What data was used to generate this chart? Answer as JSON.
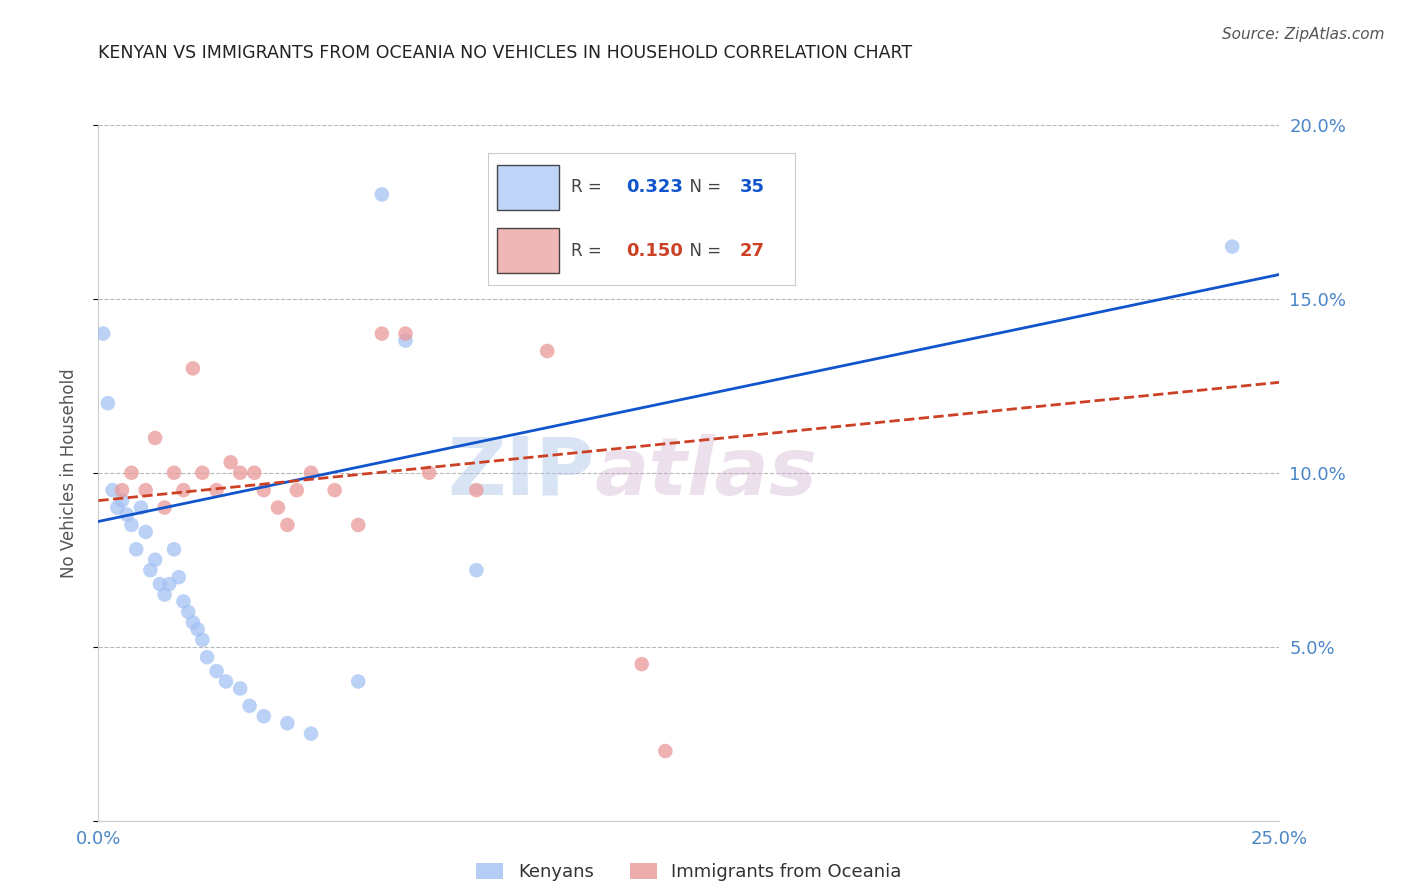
{
  "title": "KENYAN VS IMMIGRANTS FROM OCEANIA NO VEHICLES IN HOUSEHOLD CORRELATION CHART",
  "source": "Source: ZipAtlas.com",
  "ylabel": "No Vehicles in Household",
  "xlim": [
    0.0,
    0.25
  ],
  "ylim": [
    0.0,
    0.2
  ],
  "yticks": [
    0.0,
    0.05,
    0.1,
    0.15,
    0.2
  ],
  "ytick_labels": [
    "",
    "5.0%",
    "10.0%",
    "15.0%",
    "20.0%"
  ],
  "xticks": [
    0.0,
    0.05,
    0.1,
    0.15,
    0.2,
    0.25
  ],
  "xtick_labels": [
    "0.0%",
    "",
    "",
    "",
    "",
    "25.0%"
  ],
  "legend1_r": "0.323",
  "legend1_n": "35",
  "legend2_r": "0.150",
  "legend2_n": "27",
  "kenyan_color": "#a4c2f4",
  "oceania_color": "#ea9999",
  "kenyan_line_color": "#1155cc",
  "oceania_line_color": "#cc4125",
  "tick_color": "#4a86c8",
  "grid_color": "#b7b7b7",
  "background_color": "#ffffff",
  "watermark_text": "ZIP",
  "watermark_text2": "atlas",
  "kenyan_x": [
    0.001,
    0.002,
    0.003,
    0.004,
    0.005,
    0.006,
    0.007,
    0.008,
    0.009,
    0.01,
    0.011,
    0.012,
    0.013,
    0.014,
    0.015,
    0.016,
    0.017,
    0.018,
    0.019,
    0.02,
    0.021,
    0.022,
    0.023,
    0.025,
    0.027,
    0.03,
    0.032,
    0.035,
    0.04,
    0.045,
    0.055,
    0.06,
    0.065,
    0.08,
    0.24
  ],
  "kenyan_y": [
    0.14,
    0.12,
    0.095,
    0.09,
    0.092,
    0.088,
    0.085,
    0.078,
    0.09,
    0.083,
    0.072,
    0.075,
    0.068,
    0.065,
    0.068,
    0.078,
    0.07,
    0.063,
    0.06,
    0.057,
    0.055,
    0.052,
    0.047,
    0.043,
    0.04,
    0.038,
    0.033,
    0.03,
    0.028,
    0.025,
    0.04,
    0.18,
    0.138,
    0.072,
    0.165
  ],
  "oceania_x": [
    0.005,
    0.007,
    0.01,
    0.012,
    0.014,
    0.016,
    0.018,
    0.02,
    0.022,
    0.025,
    0.028,
    0.03,
    0.033,
    0.035,
    0.038,
    0.04,
    0.042,
    0.045,
    0.05,
    0.055,
    0.06,
    0.065,
    0.07,
    0.08,
    0.095,
    0.115,
    0.12
  ],
  "oceania_y": [
    0.095,
    0.1,
    0.095,
    0.11,
    0.09,
    0.1,
    0.095,
    0.13,
    0.1,
    0.095,
    0.103,
    0.1,
    0.1,
    0.095,
    0.09,
    0.085,
    0.095,
    0.1,
    0.095,
    0.085,
    0.14,
    0.14,
    0.1,
    0.095,
    0.135,
    0.045,
    0.02
  ],
  "kenyan_line_x": [
    0.0,
    0.25
  ],
  "kenyan_line_y": [
    0.086,
    0.157
  ],
  "oceania_line_x": [
    0.0,
    0.25
  ],
  "oceania_line_y": [
    0.092,
    0.126
  ]
}
